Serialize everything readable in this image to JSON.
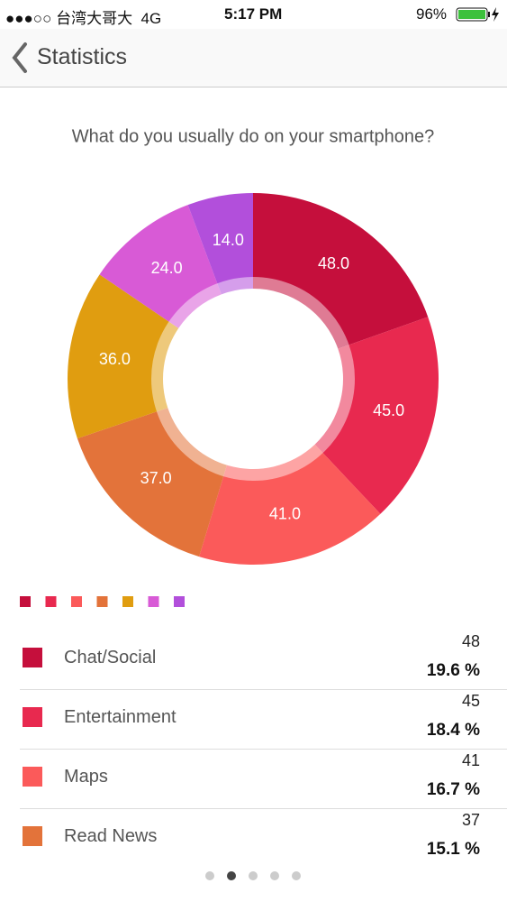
{
  "status_bar": {
    "carrier": "●●●○○ 台湾大哥大  4G",
    "time": "5:17 PM",
    "battery": "96%"
  },
  "nav": {
    "title": "Statistics"
  },
  "chart_data": {
    "type": "pie",
    "donut": true,
    "title": "What do you usually do on your smartphone?",
    "categories": [
      "Chat/Social",
      "Entertainment",
      "Maps",
      "Read News",
      null,
      null,
      null
    ],
    "values": [
      48,
      45,
      41,
      37,
      36,
      24,
      14
    ],
    "value_labels": [
      "48.0",
      "45.0",
      "41.0",
      "37.0",
      "36.0",
      "24.0",
      "14.0"
    ],
    "percent_labels": [
      "19.6 %",
      "18.4 %",
      "16.7 %",
      "15.1 %"
    ],
    "colors": [
      "#c50f3c",
      "#e8294f",
      "#fb5a5a",
      "#e3733a",
      "#e09d10",
      "#d85ad6",
      "#b24fdb"
    ]
  }
}
